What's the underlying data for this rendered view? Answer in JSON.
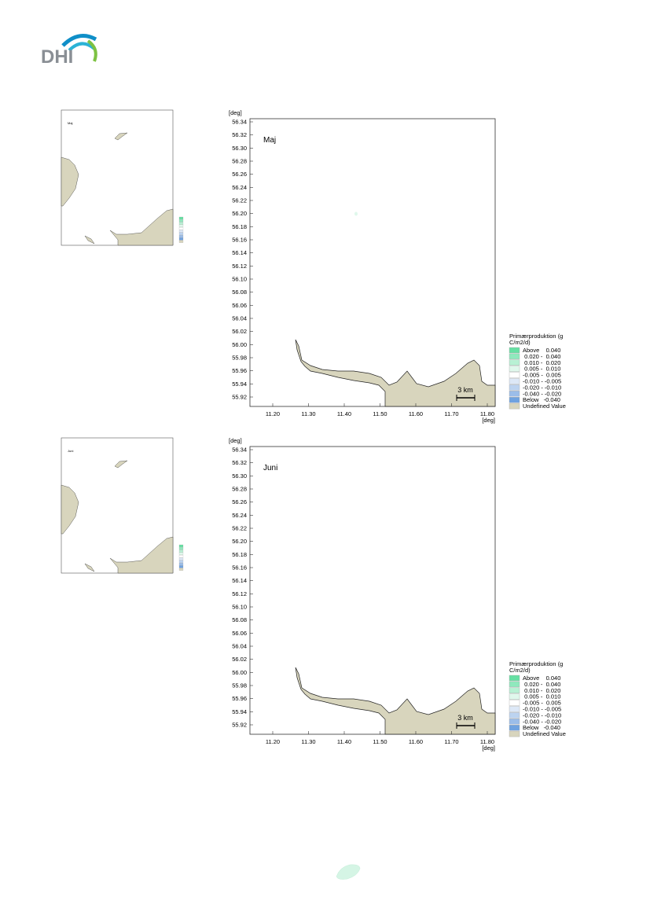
{
  "header": {
    "logo": "DHI"
  },
  "figures": [
    {
      "title": "Maj",
      "y_unit": "[deg]",
      "x_unit": "[deg]",
      "yticks": [
        "56.34",
        "56.32",
        "56.30",
        "56.28",
        "56.26",
        "56.24",
        "56.22",
        "56.20",
        "56.18",
        "56.16",
        "56.14",
        "56.12",
        "56.10",
        "56.08",
        "56.06",
        "56.04",
        "56.02",
        "56.00",
        "55.98",
        "55.96",
        "55.94",
        "55.92"
      ],
      "xticks": [
        "11.20",
        "11.30",
        "11.40",
        "11.50",
        "11.60",
        "11.70",
        "11.80"
      ],
      "scale_bar": "3 km",
      "legend": {
        "title_lines": [
          "Primærproduktion (g",
          "C/m2/d)"
        ],
        "items": [
          "Above    0.040",
          " 0.020 -  0.040",
          " 0.010 -  0.020",
          " 0.005 -  0.010",
          "-0.005 -  0.005",
          "-0.010 - -0.005",
          "-0.020 - -0.010",
          "-0.040 - -0.020",
          "Below   -0.040",
          "Undefined Value"
        ]
      }
    },
    {
      "title": "Juni",
      "y_unit": "[deg]",
      "x_unit": "[deg]",
      "yticks": [
        "56.34",
        "56.32",
        "56.30",
        "56.28",
        "56.26",
        "56.24",
        "56.22",
        "56.20",
        "56.18",
        "56.16",
        "56.14",
        "56.12",
        "56.10",
        "56.08",
        "56.06",
        "56.04",
        "56.02",
        "56.00",
        "55.98",
        "55.96",
        "55.94",
        "55.92"
      ],
      "xticks": [
        "11.20",
        "11.30",
        "11.40",
        "11.50",
        "11.60",
        "11.70",
        "11.80"
      ],
      "scale_bar": "3 km",
      "legend": {
        "title_lines": [
          "Primærproduktion (g",
          "C/m2/d)"
        ],
        "items": [
          "Above    0.040",
          " 0.020 -  0.040",
          " 0.010 -  0.020",
          " 0.005 -  0.010",
          "-0.005 -  0.005",
          "-0.010 - -0.005",
          "-0.020 - -0.010",
          "-0.040 - -0.020",
          "Below   -0.040",
          "Undefined Value"
        ]
      }
    }
  ]
}
